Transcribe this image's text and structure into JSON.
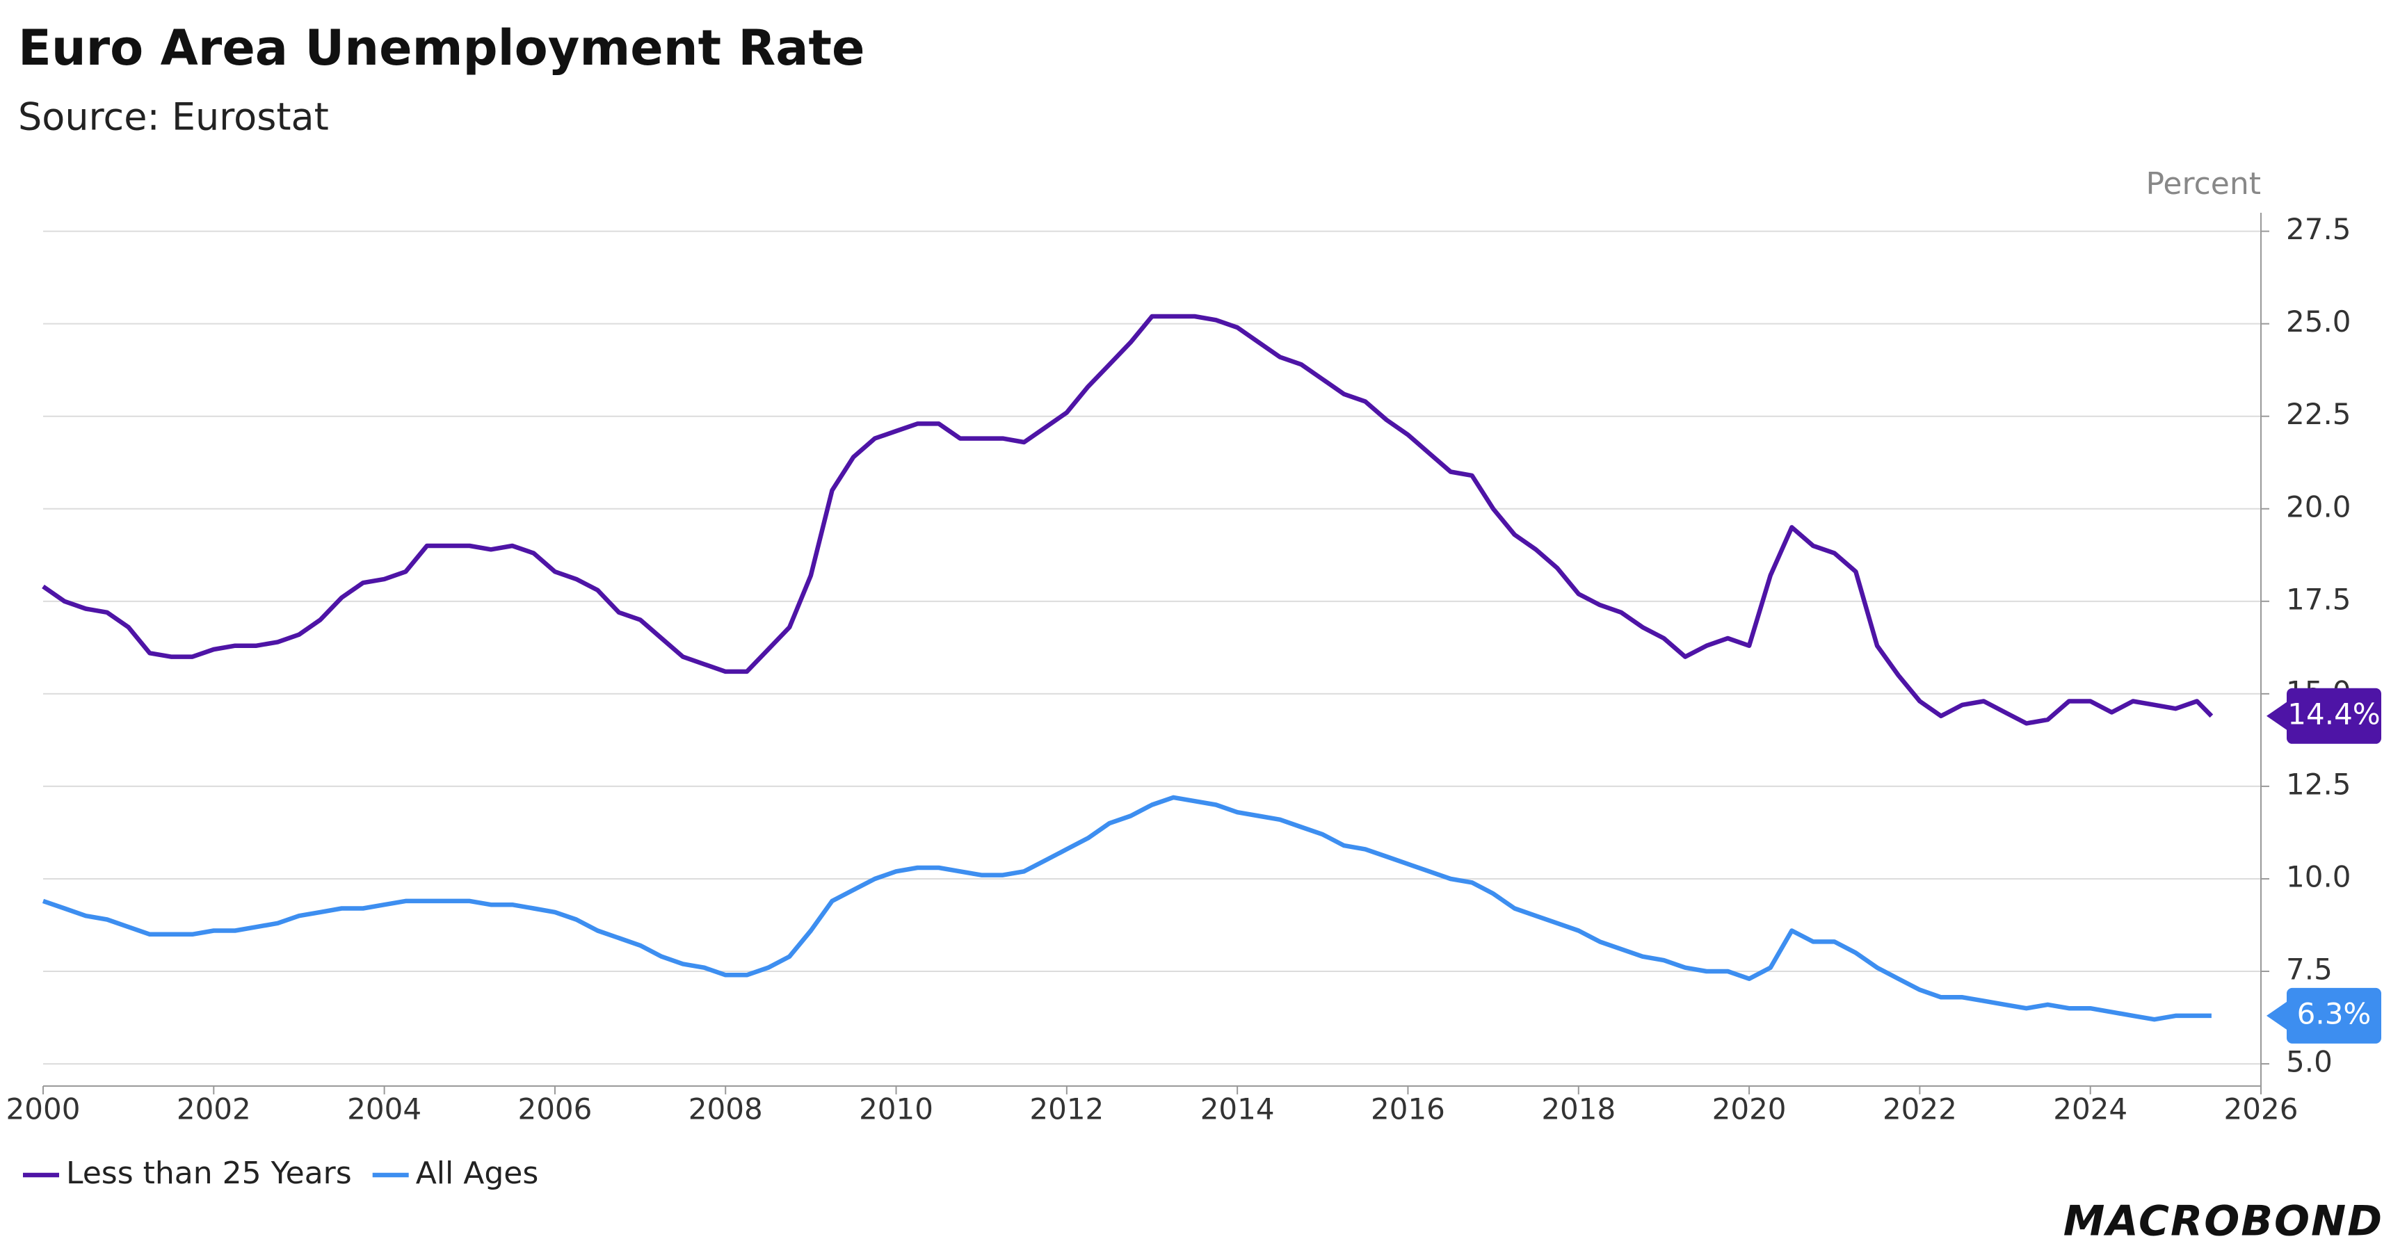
{
  "chart_data": {
    "type": "line",
    "title": "Euro Area Unemployment Rate",
    "subtitle": "Source: Eurostat",
    "y_label": "Percent",
    "logo": "MACROBOND",
    "xlim": [
      2000,
      2026
    ],
    "xticks": [
      2000,
      2002,
      2004,
      2006,
      2008,
      2010,
      2012,
      2014,
      2016,
      2018,
      2020,
      2022,
      2024,
      2026
    ],
    "ylim": [
      4.4,
      28
    ],
    "yticks": [
      {
        "value": 5,
        "label": "5.0"
      },
      7.5,
      {
        "value": 10,
        "label": "10.0"
      },
      12.5,
      {
        "value": 15,
        "label": "15.0"
      },
      17.5,
      {
        "value": 20,
        "label": "20.0"
      },
      22.5,
      {
        "value": 25,
        "label": "25.0"
      },
      27.5
    ],
    "grid": true,
    "legend": "bottom-left",
    "x": [
      2000,
      2000.25,
      2000.5,
      2000.75,
      2001,
      2001.25,
      2001.5,
      2001.75,
      2002,
      2002.25,
      2002.5,
      2002.75,
      2003,
      2003.25,
      2003.5,
      2003.75,
      2004,
      2004.25,
      2004.5,
      2004.75,
      2005,
      2005.25,
      2005.5,
      2005.75,
      2006,
      2006.25,
      2006.5,
      2006.75,
      2007,
      2007.25,
      2007.5,
      2007.75,
      2008,
      2008.25,
      2008.5,
      2008.75,
      2009,
      2009.25,
      2009.5,
      2009.75,
      2010,
      2010.25,
      2010.5,
      2010.75,
      2011,
      2011.25,
      2011.5,
      2011.75,
      2012,
      2012.25,
      2012.5,
      2012.75,
      2013,
      2013.25,
      2013.5,
      2013.75,
      2014,
      2014.25,
      2014.5,
      2014.75,
      2015,
      2015.25,
      2015.5,
      2015.75,
      2016,
      2016.25,
      2016.5,
      2016.75,
      2017,
      2017.25,
      2017.5,
      2017.75,
      2018,
      2018.25,
      2018.5,
      2018.75,
      2019,
      2019.25,
      2019.5,
      2019.75,
      2020,
      2020.25,
      2020.5,
      2020.75,
      2021,
      2021.25,
      2021.5,
      2021.75,
      2022,
      2022.25,
      2022.5,
      2022.75,
      2023,
      2023.25,
      2023.5,
      2023.75,
      2024,
      2024.25,
      2024.5,
      2024.75,
      2025,
      2025.25,
      2025.42
    ],
    "series": [
      {
        "name": "Less than 25 Years",
        "color": "#4e14a6",
        "label": "14.4%",
        "values": [
          17.9,
          17.5,
          17.3,
          17.2,
          16.8,
          16.1,
          16.0,
          16.0,
          16.2,
          16.3,
          16.3,
          16.4,
          16.6,
          17.0,
          17.6,
          18.0,
          18.1,
          18.3,
          19.0,
          19.0,
          19.0,
          18.9,
          19.0,
          18.8,
          18.3,
          18.1,
          17.8,
          17.2,
          17.0,
          16.5,
          16.0,
          15.8,
          15.6,
          15.6,
          16.2,
          16.8,
          18.2,
          20.5,
          21.4,
          21.9,
          22.1,
          22.3,
          22.3,
          21.9,
          21.9,
          21.9,
          21.8,
          22.2,
          22.6,
          23.3,
          23.9,
          24.5,
          25.2,
          25.2,
          25.2,
          25.1,
          24.9,
          24.5,
          24.1,
          23.9,
          23.5,
          23.1,
          22.9,
          22.4,
          22.0,
          21.5,
          21.0,
          20.9,
          20.0,
          19.3,
          18.9,
          18.4,
          17.7,
          17.4,
          17.2,
          16.8,
          16.5,
          16.0,
          16.3,
          16.5,
          16.3,
          18.2,
          19.5,
          19.0,
          18.8,
          18.3,
          16.3,
          15.5,
          14.8,
          14.4,
          14.7,
          14.8,
          14.5,
          14.2,
          14.3,
          14.8,
          14.8,
          14.5,
          14.8,
          14.7,
          14.6,
          14.8,
          14.4
        ]
      },
      {
        "name": "All Ages",
        "color": "#3d8ef0",
        "label": "6.3%",
        "values": [
          9.4,
          9.2,
          9.0,
          8.9,
          8.7,
          8.5,
          8.5,
          8.5,
          8.6,
          8.6,
          8.7,
          8.8,
          9.0,
          9.1,
          9.2,
          9.2,
          9.3,
          9.4,
          9.4,
          9.4,
          9.4,
          9.3,
          9.3,
          9.2,
          9.1,
          8.9,
          8.6,
          8.4,
          8.2,
          7.9,
          7.7,
          7.6,
          7.4,
          7.4,
          7.6,
          7.9,
          8.6,
          9.4,
          9.7,
          10.0,
          10.2,
          10.3,
          10.3,
          10.2,
          10.1,
          10.1,
          10.2,
          10.5,
          10.8,
          11.1,
          11.5,
          11.7,
          12.0,
          12.2,
          12.1,
          12.0,
          11.8,
          11.7,
          11.6,
          11.4,
          11.2,
          10.9,
          10.8,
          10.6,
          10.4,
          10.2,
          10.0,
          9.9,
          9.6,
          9.2,
          9.0,
          8.8,
          8.6,
          8.3,
          8.1,
          7.9,
          7.8,
          7.6,
          7.5,
          7.5,
          7.3,
          7.6,
          8.6,
          8.3,
          8.3,
          8.0,
          7.6,
          7.3,
          7.0,
          6.8,
          6.8,
          6.7,
          6.6,
          6.5,
          6.6,
          6.5,
          6.5,
          6.4,
          6.3,
          6.2,
          6.3,
          6.3,
          6.3
        ]
      }
    ]
  }
}
